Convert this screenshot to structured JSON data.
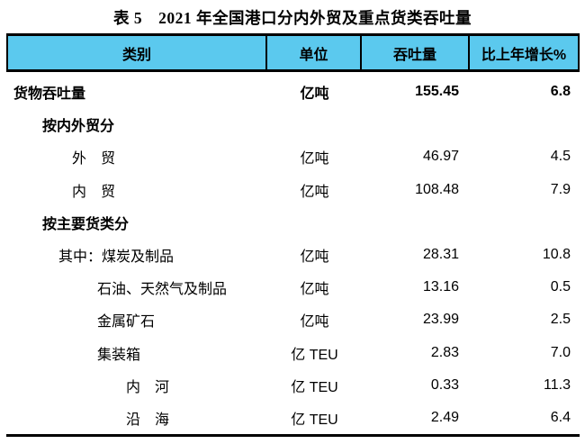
{
  "title": "表 5　2021 年全国港口分内外贸及重点货类吞吐量",
  "colors": {
    "header_bg": "#5BC9EE",
    "border": "#000000"
  },
  "table": {
    "columns": [
      "类别",
      "单位",
      "吞吐量",
      "比上年增长%"
    ],
    "rows": [
      {
        "category": "货物吞吐量",
        "unit": "亿吨",
        "throughput": "155.45",
        "growth": "6.8",
        "row_bold": true,
        "cat_bold": true,
        "level": 0
      },
      {
        "category": "按内外贸分",
        "unit": "",
        "throughput": "",
        "growth": "",
        "row_bold": false,
        "cat_bold": true,
        "level": 1
      },
      {
        "category": "外　贸",
        "unit": "亿吨",
        "throughput": "46.97",
        "growth": "4.5",
        "row_bold": false,
        "cat_bold": false,
        "level": 3
      },
      {
        "category": "内　贸",
        "unit": "亿吨",
        "throughput": "108.48",
        "growth": "7.9",
        "row_bold": false,
        "cat_bold": false,
        "level": 3
      },
      {
        "category": "按主要货类分",
        "unit": "",
        "throughput": "",
        "growth": "",
        "row_bold": false,
        "cat_bold": true,
        "level": 1
      },
      {
        "category": "其中：煤炭及制品",
        "unit": "亿吨",
        "throughput": "28.31",
        "growth": "10.8",
        "row_bold": false,
        "cat_bold": false,
        "level": 2
      },
      {
        "category": "石油、天然气及制品",
        "unit": "亿吨",
        "throughput": "13.16",
        "growth": "0.5",
        "row_bold": false,
        "cat_bold": false,
        "level": 4
      },
      {
        "category": "金属矿石",
        "unit": "亿吨",
        "throughput": "23.99",
        "growth": "2.5",
        "row_bold": false,
        "cat_bold": false,
        "level": 4
      },
      {
        "category": "集装箱",
        "unit": "亿 TEU",
        "throughput": "2.83",
        "growth": "7.0",
        "row_bold": false,
        "cat_bold": false,
        "level": 4
      },
      {
        "category": "内　河",
        "unit": "亿 TEU",
        "throughput": "0.33",
        "growth": "11.3",
        "row_bold": false,
        "cat_bold": false,
        "level": 5
      },
      {
        "category": "沿　海",
        "unit": "亿 TEU",
        "throughput": "2.49",
        "growth": "6.4",
        "row_bold": false,
        "cat_bold": false,
        "level": 5
      }
    ]
  }
}
